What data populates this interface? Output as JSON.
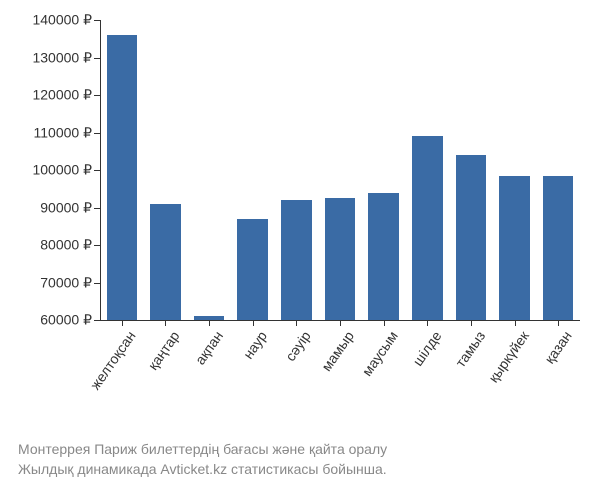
{
  "chart": {
    "type": "bar",
    "categories": [
      "желтоқсан",
      "қаңтар",
      "ақпан",
      "наур",
      "сәуір",
      "мамыр",
      "маусым",
      "шілде",
      "тамыз",
      "қыркүйек",
      "қазан"
    ],
    "values": [
      136000,
      91000,
      61000,
      87000,
      92000,
      92500,
      94000,
      109000,
      104000,
      98500,
      98500
    ],
    "bar_color": "#3a6ba5",
    "background_color": "#ffffff",
    "ylim": [
      60000,
      140000
    ],
    "ytick_step": 10000,
    "ytick_labels": [
      "60000 ₽",
      "70000 ₽",
      "80000 ₽",
      "90000 ₽",
      "100000 ₽",
      "110000 ₽",
      "120000 ₽",
      "130000 ₽",
      "140000 ₽"
    ],
    "bar_width_ratio": 0.7,
    "axis_color": "#333333",
    "tick_fontsize": 14,
    "x_tick_rotation_deg": -55,
    "caption_color": "#888888",
    "caption_fontsize": 14
  },
  "caption": {
    "line1": "Монтеррея Париж билеттердің бағасы және қайта оралу",
    "line2": "Жылдық динамикада Avticket.kz статистикасы бойынша."
  }
}
